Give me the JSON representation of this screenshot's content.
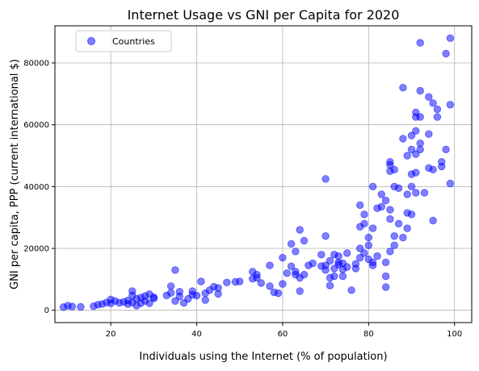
{
  "chart_data": {
    "type": "scatter",
    "title": "Internet Usage vs GNI per Capita for 2020",
    "xlabel": "Individuals using the Internet (% of population)",
    "ylabel": "GNI per capita, PPP (current international $)",
    "xlim": [
      7,
      104
    ],
    "ylim": [
      -4000,
      92000
    ],
    "xticks": [
      20,
      40,
      60,
      80,
      100
    ],
    "yticks": [
      0,
      20000,
      40000,
      60000,
      80000
    ],
    "grid": true,
    "legend": {
      "position": "top-left",
      "entries": [
        "Countries"
      ]
    },
    "colors": {
      "point": "#0000ff",
      "grid": "#b0b0b0",
      "axis": "#000000"
    },
    "series": [
      {
        "name": "Countries",
        "points": [
          [
            9,
            1000
          ],
          [
            10,
            1500
          ],
          [
            11,
            1200
          ],
          [
            13,
            1100
          ],
          [
            16,
            1300
          ],
          [
            17,
            1800
          ],
          [
            18,
            2000
          ],
          [
            19,
            2500
          ],
          [
            20,
            2200
          ],
          [
            20,
            3500
          ],
          [
            21,
            3000
          ],
          [
            22,
            2400
          ],
          [
            23,
            2700
          ],
          [
            24,
            2000
          ],
          [
            24,
            3200
          ],
          [
            25,
            6200
          ],
          [
            25,
            4800
          ],
          [
            25,
            2500
          ],
          [
            26,
            3700
          ],
          [
            26,
            1500
          ],
          [
            27,
            2300
          ],
          [
            27,
            4100
          ],
          [
            28,
            3000
          ],
          [
            28,
            4600
          ],
          [
            29,
            5200
          ],
          [
            29,
            2300
          ],
          [
            30,
            4200
          ],
          [
            30,
            3800
          ],
          [
            33,
            4800
          ],
          [
            34,
            7800
          ],
          [
            34,
            5600
          ],
          [
            35,
            3000
          ],
          [
            35,
            13000
          ],
          [
            36,
            4500
          ],
          [
            36,
            6000
          ],
          [
            37,
            2400
          ],
          [
            38,
            3700
          ],
          [
            39,
            5000
          ],
          [
            39,
            6200
          ],
          [
            40,
            4700
          ],
          [
            41,
            9300
          ],
          [
            42,
            5500
          ],
          [
            42,
            3300
          ],
          [
            43,
            6500
          ],
          [
            44,
            7600
          ],
          [
            45,
            5300
          ],
          [
            45,
            7200
          ],
          [
            47,
            9000
          ],
          [
            49,
            9200
          ],
          [
            50,
            9300
          ],
          [
            53,
            12500
          ],
          [
            53,
            10200
          ],
          [
            54,
            11500
          ],
          [
            54,
            10500
          ],
          [
            55,
            8800
          ],
          [
            57,
            14500
          ],
          [
            57,
            7800
          ],
          [
            58,
            5800
          ],
          [
            59,
            5500
          ],
          [
            60,
            17000
          ],
          [
            60,
            8500
          ],
          [
            61,
            12000
          ],
          [
            62,
            14200
          ],
          [
            62,
            21500
          ],
          [
            63,
            19000
          ],
          [
            63,
            11500
          ],
          [
            63,
            12500
          ],
          [
            64,
            26000
          ],
          [
            64,
            10500
          ],
          [
            64,
            6200
          ],
          [
            65,
            22500
          ],
          [
            65,
            11500
          ],
          [
            66,
            14500
          ],
          [
            67,
            15200
          ],
          [
            69,
            14300
          ],
          [
            69,
            18000
          ],
          [
            70,
            24000
          ],
          [
            70,
            14500
          ],
          [
            70,
            13000
          ],
          [
            70,
            42500
          ],
          [
            71,
            16000
          ],
          [
            71,
            10500
          ],
          [
            71,
            8000
          ],
          [
            72,
            18000
          ],
          [
            72,
            13500
          ],
          [
            72,
            11000
          ],
          [
            73,
            17500
          ],
          [
            73,
            14800
          ],
          [
            73,
            15500
          ],
          [
            74,
            13200
          ],
          [
            74,
            15200
          ],
          [
            74,
            11000
          ],
          [
            75,
            18500
          ],
          [
            75,
            14000
          ],
          [
            76,
            6500
          ],
          [
            77,
            13500
          ],
          [
            77,
            15000
          ],
          [
            78,
            17000
          ],
          [
            78,
            27000
          ],
          [
            78,
            20000
          ],
          [
            78,
            34000
          ],
          [
            79,
            31000
          ],
          [
            79,
            28000
          ],
          [
            79,
            18500
          ],
          [
            80,
            16500
          ],
          [
            80,
            21000
          ],
          [
            80,
            23500
          ],
          [
            81,
            26500
          ],
          [
            81,
            40000
          ],
          [
            81,
            15500
          ],
          [
            81,
            14500
          ],
          [
            82,
            33000
          ],
          [
            82,
            17500
          ],
          [
            83,
            37500
          ],
          [
            83,
            33500
          ],
          [
            84,
            35500
          ],
          [
            84,
            15500
          ],
          [
            84,
            11000
          ],
          [
            84,
            7500
          ],
          [
            85,
            48000
          ],
          [
            85,
            47000
          ],
          [
            85,
            45000
          ],
          [
            85,
            32500
          ],
          [
            85,
            29500
          ],
          [
            85,
            19000
          ],
          [
            86,
            21000
          ],
          [
            86,
            24000
          ],
          [
            86,
            45500
          ],
          [
            86,
            40000
          ],
          [
            87,
            39500
          ],
          [
            87,
            28000
          ],
          [
            88,
            55500
          ],
          [
            88,
            23500
          ],
          [
            88,
            72000
          ],
          [
            89,
            50000
          ],
          [
            89,
            31500
          ],
          [
            89,
            26500
          ],
          [
            89,
            37500
          ],
          [
            90,
            52000
          ],
          [
            90,
            56500
          ],
          [
            90,
            40000
          ],
          [
            90,
            31000
          ],
          [
            90,
            44000
          ],
          [
            91,
            58000
          ],
          [
            91,
            62500
          ],
          [
            91,
            64000
          ],
          [
            91,
            50500
          ],
          [
            91,
            38000
          ],
          [
            91,
            44500
          ],
          [
            92,
            54000
          ],
          [
            92,
            71000
          ],
          [
            92,
            62500
          ],
          [
            92,
            86500
          ],
          [
            92,
            52000
          ],
          [
            93,
            38000
          ],
          [
            94,
            69000
          ],
          [
            94,
            57000
          ],
          [
            94,
            46000
          ],
          [
            95,
            67000
          ],
          [
            95,
            29000
          ],
          [
            95,
            45500
          ],
          [
            96,
            62500
          ],
          [
            96,
            65000
          ],
          [
            97,
            46500
          ],
          [
            97,
            48000
          ],
          [
            98,
            83000
          ],
          [
            98,
            52000
          ],
          [
            99,
            88000
          ],
          [
            99,
            66500
          ],
          [
            99,
            41000
          ]
        ]
      }
    ]
  }
}
